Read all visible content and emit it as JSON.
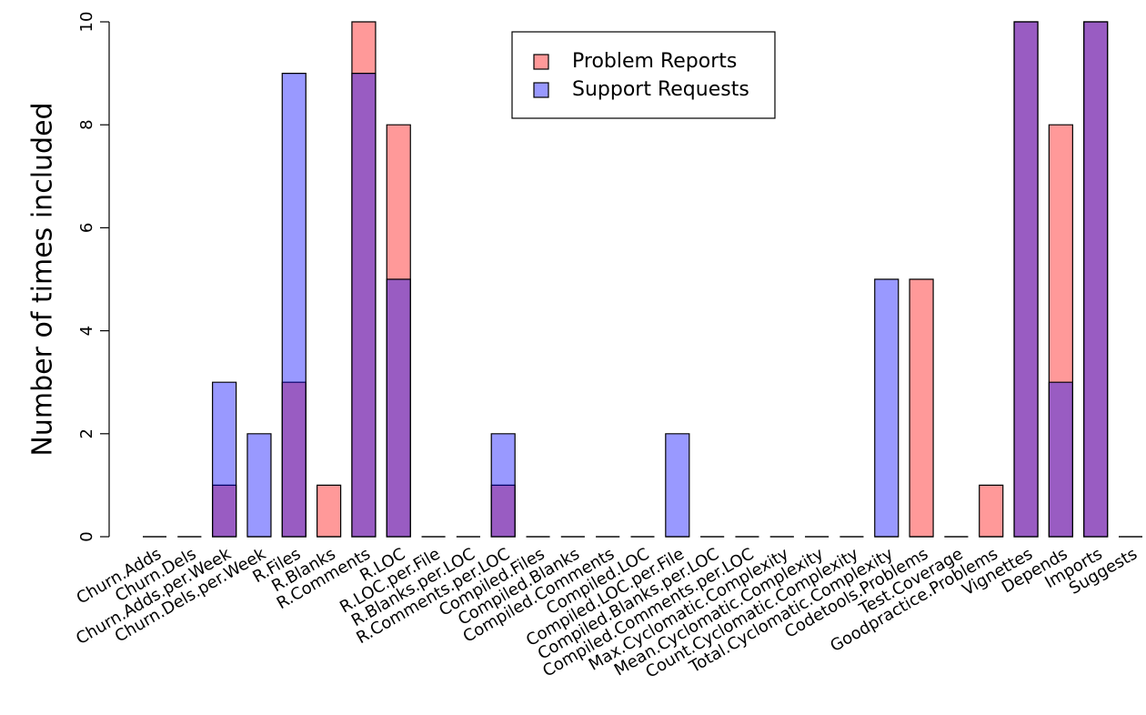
{
  "chart_data": {
    "type": "overlapping-bar",
    "y_label": "Number of times included",
    "categories": [
      "Churn.Adds",
      "Churn.Dels",
      "Churn.Adds.per.Week",
      "Churn.Dels.per.Week",
      "R.Files",
      "R.Blanks",
      "R.Comments",
      "R.LOC",
      "R.LOC.per.File",
      "R.Blanks.per.LOC",
      "R.Comments.per.LOC",
      "Compiled.Files",
      "Compiled.Blanks",
      "Compiled.Comments",
      "Compiled.LOC",
      "Compiled.LOC.per.File",
      "Compiled.Blanks.per.LOC",
      "Compiled.Comments.per.LOC",
      "Max.Cyclomatic.Complexity",
      "Mean.Cyclomatic.Complexity",
      "Count.Cyclomatic.Complexity",
      "Total.Cyclomatic.Complexity",
      "Codetools.Problems",
      "Test.Coverage",
      "Goodpractice.Problems",
      "Vignettes",
      "Depends",
      "Imports",
      "Suggests"
    ],
    "series": [
      {
        "name": "Problem Reports",
        "color": "rgba(255,0,0,0.4)",
        "values": [
          0,
          0,
          1,
          0,
          3,
          1,
          10,
          8,
          0,
          0,
          1,
          0,
          0,
          0,
          0,
          0,
          0,
          0,
          0,
          0,
          0,
          0,
          5,
          0,
          1,
          10,
          8,
          10,
          0
        ]
      },
      {
        "name": "Support Requests",
        "color": "rgba(0,0,255,0.4)",
        "values": [
          0,
          0,
          3,
          2,
          9,
          0,
          9,
          5,
          0,
          0,
          2,
          0,
          0,
          0,
          0,
          2,
          0,
          0,
          0,
          0,
          0,
          5,
          0,
          0,
          0,
          10,
          3,
          10,
          0
        ]
      }
    ],
    "ylim": [
      0,
      10
    ],
    "yticks": [
      0,
      2,
      4,
      6,
      8,
      10
    ],
    "legend": "top"
  }
}
